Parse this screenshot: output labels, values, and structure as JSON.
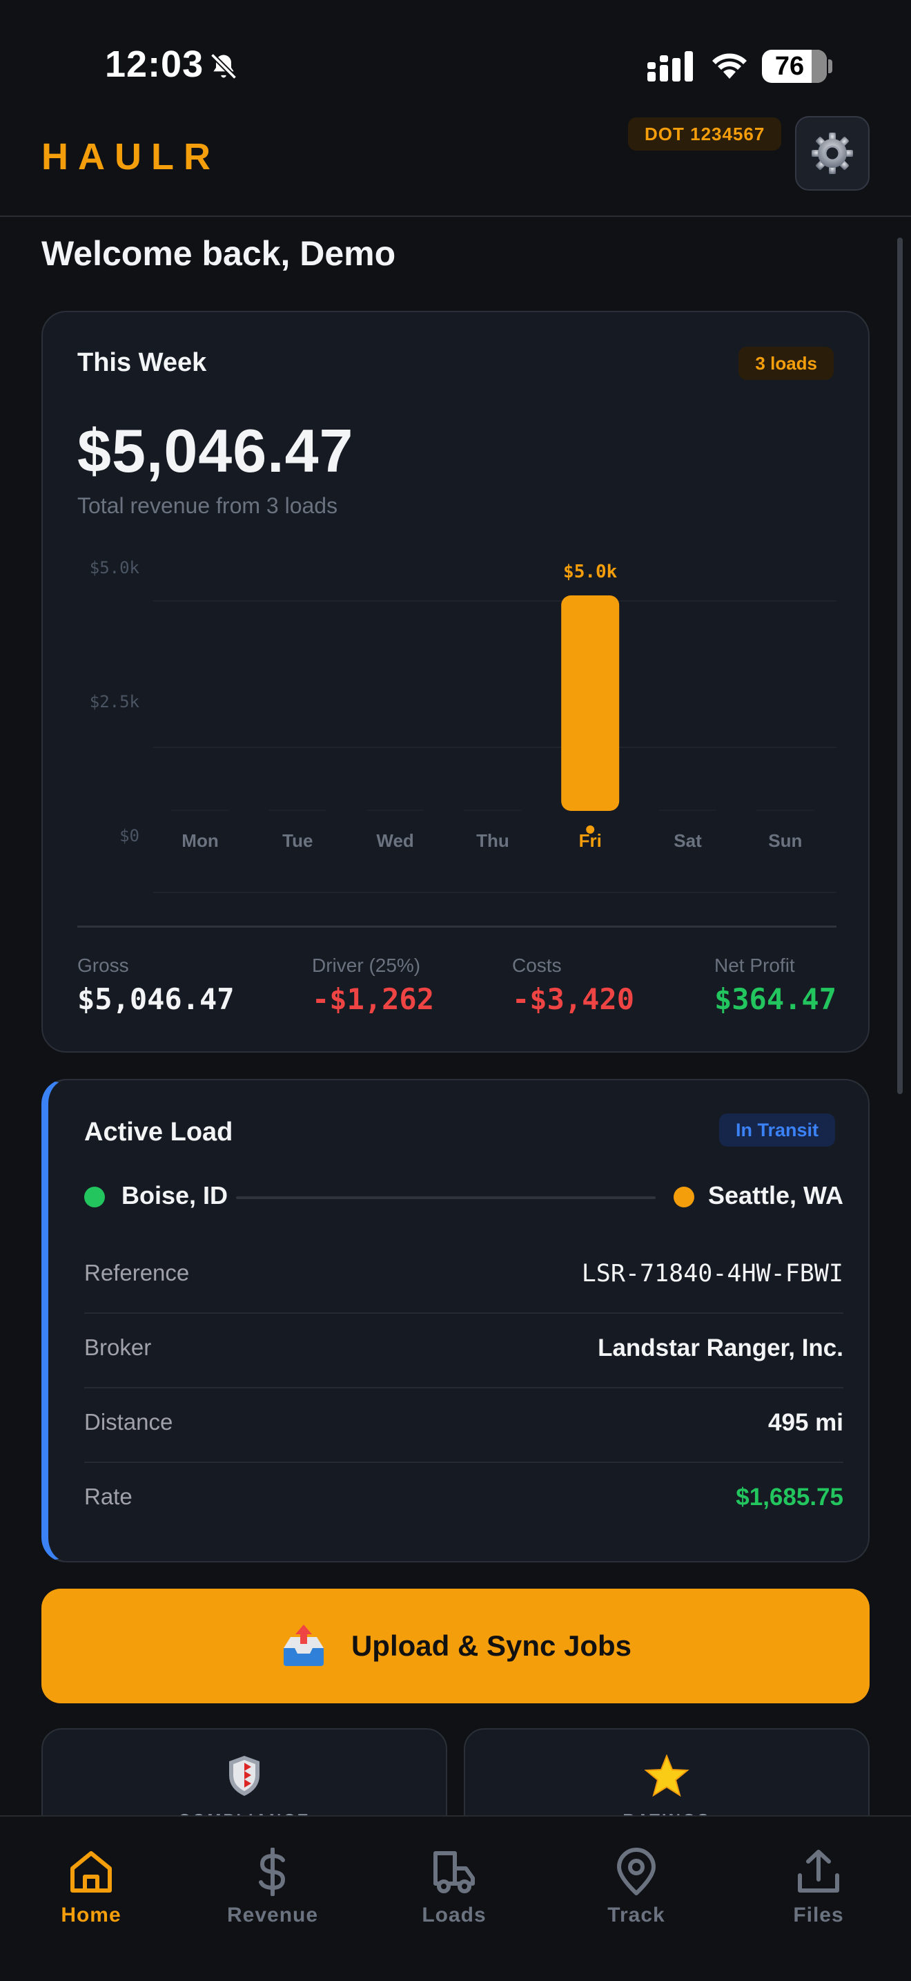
{
  "status_bar": {
    "time": "12:03",
    "battery": "76"
  },
  "header": {
    "logo": "HAULR",
    "dot_badge": "DOT 1234567"
  },
  "welcome": "Welcome back, Demo",
  "week_card": {
    "title": "This Week",
    "loads_badge": "3 loads",
    "amount": "$5,046.47",
    "subtitle": "Total revenue from 3 loads",
    "stats": [
      {
        "label": "Gross",
        "value": "$5,046.47",
        "color": "#f3f4f6"
      },
      {
        "label": "Driver (25%)",
        "value": "-$1,262",
        "color": "#ef4444"
      },
      {
        "label": "Costs",
        "value": "-$3,420",
        "color": "#ef4444"
      },
      {
        "label": "Net Profit",
        "value": "$364.47",
        "color": "#22c55e"
      }
    ]
  },
  "chart_data": {
    "type": "bar",
    "categories": [
      "Mon",
      "Tue",
      "Wed",
      "Thu",
      "Fri",
      "Sat",
      "Sun"
    ],
    "values": [
      0,
      0,
      0,
      0,
      5046.47,
      0,
      0
    ],
    "value_labels": [
      "",
      "",
      "",
      "",
      "$5.0k",
      "",
      ""
    ],
    "ytick_labels": [
      "$5.0k",
      "$2.5k",
      "$0"
    ],
    "ytick_values": [
      5000,
      2500,
      0
    ],
    "ylim": [
      0,
      5046.47
    ],
    "highlight_index": 4,
    "bar_color": "#f59e0b",
    "grid": true
  },
  "active_load": {
    "title": "Active Load",
    "status": "In Transit",
    "origin": "Boise, ID",
    "destination": "Seattle, WA",
    "rows": [
      {
        "key": "Reference",
        "value": "LSR-71840-4HW-FBWI"
      },
      {
        "key": "Broker",
        "value": "Landstar Ranger, Inc."
      },
      {
        "key": "Distance",
        "value": "495 mi"
      },
      {
        "key": "Rate",
        "value": "$1,685.75"
      }
    ],
    "rate_color": "#22c55e"
  },
  "upload_button": {
    "label": "Upload & Sync Jobs",
    "icon": "inbox-tray-icon"
  },
  "tiles": [
    {
      "label": "COMPLIANCE",
      "icon": "shield-icon"
    },
    {
      "label": "RATINGS",
      "icon": "star-icon"
    }
  ],
  "tabs": [
    {
      "label": "Home",
      "icon": "home-icon",
      "active": true
    },
    {
      "label": "Revenue",
      "icon": "dollar-icon",
      "active": false
    },
    {
      "label": "Loads",
      "icon": "truck-icon",
      "active": false
    },
    {
      "label": "Track",
      "icon": "location-pin-icon",
      "active": false
    },
    {
      "label": "Files",
      "icon": "upload-icon",
      "active": false
    }
  ],
  "colors": {
    "accent": "#f59e0b",
    "transit": "#3b82f6",
    "positive": "#22c55e",
    "negative": "#ef4444",
    "inactive_tab": "#6b7280"
  }
}
